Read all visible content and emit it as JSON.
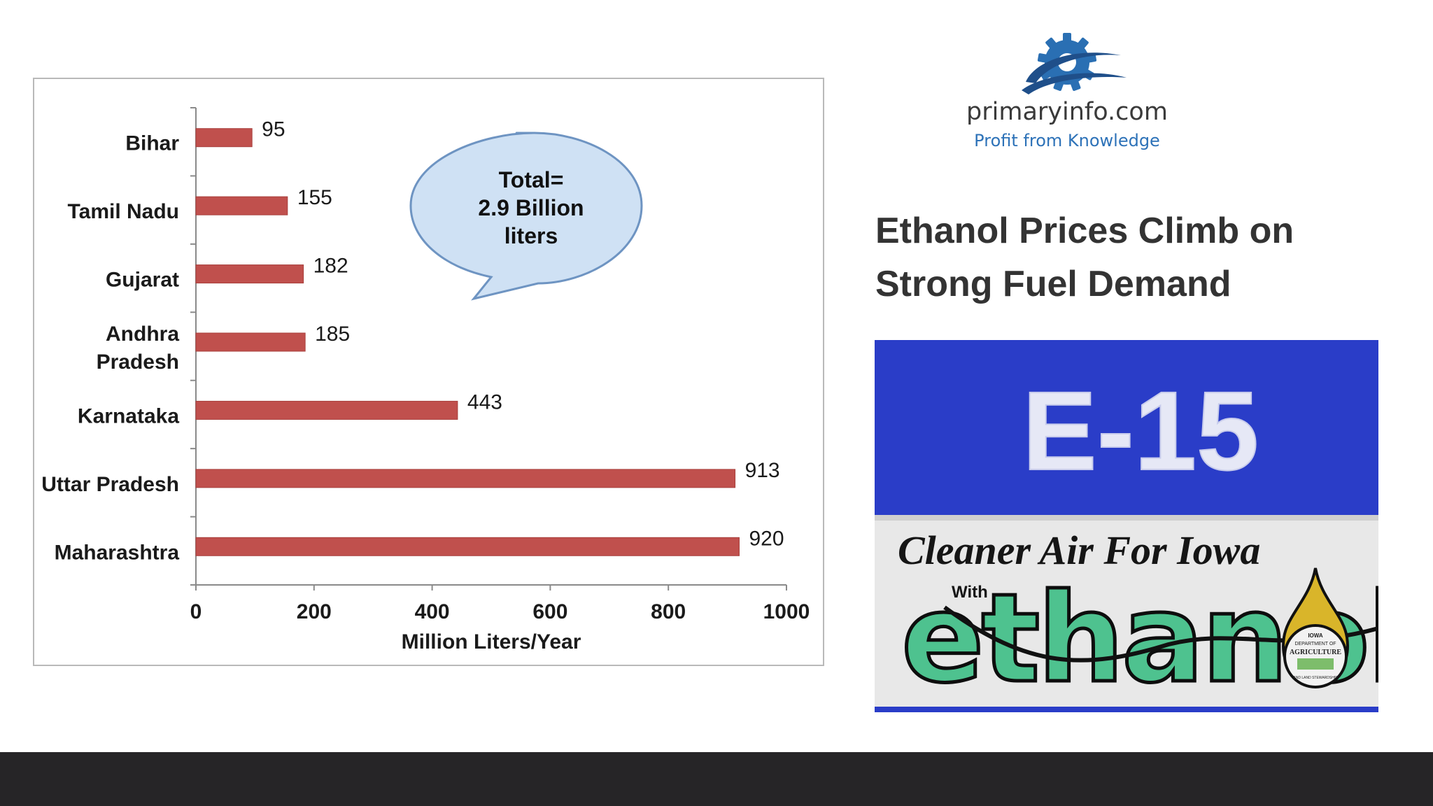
{
  "chart_data": {
    "type": "bar",
    "orientation": "horizontal",
    "categories": [
      "Bihar",
      "Tamil Nadu",
      "Gujarat",
      "Andhra Pradesh",
      "Karnataka",
      "Uttar Pradesh",
      "Maharashtra"
    ],
    "category_lines": [
      [
        "Bihar"
      ],
      [
        "Tamil Nadu"
      ],
      [
        "Gujarat"
      ],
      [
        "Andhra",
        "Pradesh"
      ],
      [
        "Karnataka"
      ],
      [
        "Uttar Pradesh"
      ],
      [
        "Maharashtra"
      ]
    ],
    "values": [
      95,
      155,
      182,
      185,
      443,
      913,
      920
    ],
    "xlabel": "Million Liters/Year",
    "ylabel": "",
    "xlim": [
      0,
      1000
    ],
    "xticks": [
      0,
      200,
      400,
      600,
      800,
      1000
    ],
    "grid": false,
    "bar_color": "#c0504d",
    "callout": {
      "lines": [
        "Total=",
        "2.9 Billion",
        "liters"
      ]
    }
  },
  "logo": {
    "name": "primaryinfo.com",
    "tagline": "Profit from Knowledge",
    "icon": "gear-icon",
    "colors": {
      "gear": "#2a6fb3",
      "swoosh": "#1f4f8a",
      "name": "#3a3a3a",
      "tagline": "#2d72b8"
    }
  },
  "headline": "Ethanol Prices Climb on Strong Fuel Demand",
  "photo": {
    "sign_code": "E-15",
    "slogan": "Cleaner Air For Iowa",
    "with_text": "With",
    "brand_word": "ethanol",
    "seal_lines": [
      "IOWA",
      "DEPARTMENT OF",
      "AGRICULTURE",
      "AND LAND STEWARDSHIP"
    ],
    "colors": {
      "sign_blue": "#2a3dc8",
      "panel": "#e8e8e8",
      "letter_green": "#4ec28f",
      "letter_blue": "#3ca6e0",
      "drop": "#d9b52a"
    }
  },
  "footer": {
    "color": "#262527"
  }
}
